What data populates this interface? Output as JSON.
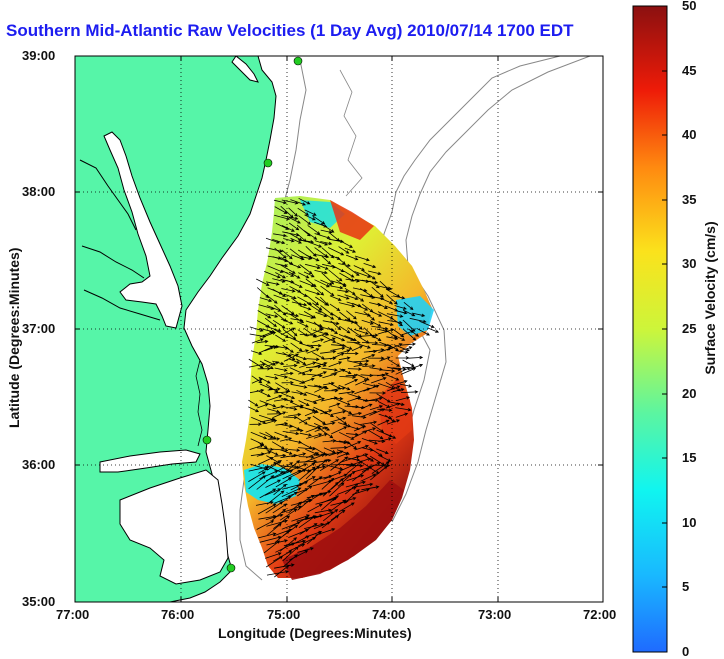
{
  "title": "Southern Mid-Atlantic Raw Velocities (1 Day Avg) 2010/07/14 1700 EDT",
  "axes": {
    "ylabel": "Latitude (Degrees:Minutes)",
    "xlabel": "Longitude (Degrees:Minutes)",
    "yticks": [
      "39:00",
      "38:00",
      "37:00",
      "36:00",
      "35:00"
    ],
    "xticks": [
      "77:00",
      "76:00",
      "75:00",
      "74:00",
      "73:00",
      "72:00"
    ],
    "xlim": [
      -77,
      -72
    ],
    "ylim": [
      35,
      39
    ],
    "grid": "dotted"
  },
  "colorbar": {
    "label": "Surface Velocity (cm/s)",
    "ticks": [
      "0",
      "5",
      "10",
      "15",
      "20",
      "25",
      "30",
      "35",
      "40",
      "45",
      "50"
    ],
    "range": [
      0,
      50
    ],
    "colormap": "jet"
  },
  "colors": {
    "land": "#56f5a8",
    "coastline": "#000000",
    "bathymetry": "#888888",
    "title": "#1d1df0",
    "station": "#22cc22"
  }
}
